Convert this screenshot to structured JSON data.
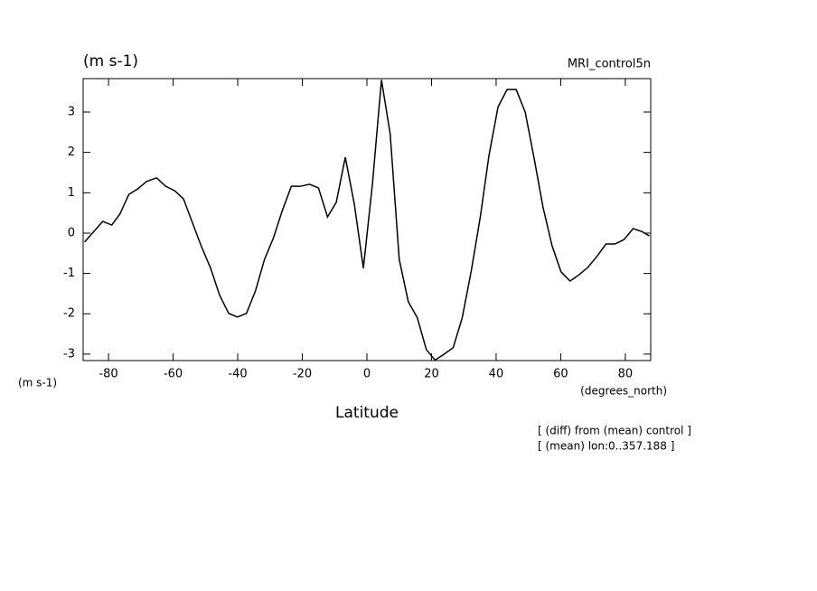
{
  "chart_data": {
    "type": "line",
    "title": "(m s-1)",
    "subtitle": "MRI_control5n",
    "y_unit_label": "(m s-1)",
    "x_unit_label": "(degrees_north)",
    "xlabel": "Latitude",
    "annotations": [
      "[ (diff) from (mean) control ]",
      "[ (mean) lon:0..357.188 ]"
    ],
    "xlim": [
      -87.86,
      87.86
    ],
    "ylim": [
      -3.16,
      3.83
    ],
    "xticks": [
      -80,
      -60,
      -40,
      -20,
      0,
      20,
      40,
      60,
      80
    ],
    "yticks": [
      -3,
      -2,
      -1,
      0,
      1,
      2,
      3
    ],
    "color": "#000000",
    "x": [
      -87.4,
      -81.8,
      -79,
      -76.5,
      -73.7,
      -70.9,
      -68.2,
      -65.1,
      -62.3,
      -59.5,
      -56.8,
      -54,
      -51.2,
      -48.4,
      -45.6,
      -42.8,
      -40.1,
      -37.3,
      -34.5,
      -31.7,
      -28.9,
      -26.2,
      -23.4,
      -20.6,
      -17.8,
      -15,
      -12.2,
      -9.5,
      -6.7,
      -3.9,
      -1.1,
      1.7,
      4.5,
      7.2,
      10,
      12.8,
      15.6,
      18.4,
      21.1,
      23.9,
      26.7,
      29.5,
      32.3,
      35.1,
      37.8,
      40.6,
      43.4,
      46.2,
      49,
      51.8,
      54.5,
      57.3,
      60.1,
      62.9,
      65.7,
      68.4,
      71.2,
      74,
      76.8,
      79.6,
      82.4,
      85.1,
      87.4
    ],
    "values": [
      -0.22,
      0.29,
      0.2,
      0.47,
      0.96,
      1.1,
      1.28,
      1.37,
      1.16,
      1.05,
      0.85,
      0.25,
      -0.34,
      -0.87,
      -1.54,
      -1.99,
      -2.08,
      -1.99,
      -1.43,
      -0.65,
      -0.11,
      0.56,
      1.16,
      1.16,
      1.21,
      1.12,
      0.4,
      0.76,
      1.88,
      0.72,
      -0.87,
      1.21,
      3.8,
      2.46,
      -0.65,
      -1.7,
      -2.1,
      -2.89,
      -3.15,
      -3.0,
      -2.84,
      -2.1,
      -0.94,
      0.4,
      1.93,
      3.13,
      3.56,
      3.56,
      3.0,
      1.84,
      0.65,
      -0.31,
      -0.96,
      -1.19,
      -1.03,
      -0.85,
      -0.58,
      -0.27,
      -0.27,
      -0.16,
      0.11,
      0.04,
      -0.07
    ]
  }
}
